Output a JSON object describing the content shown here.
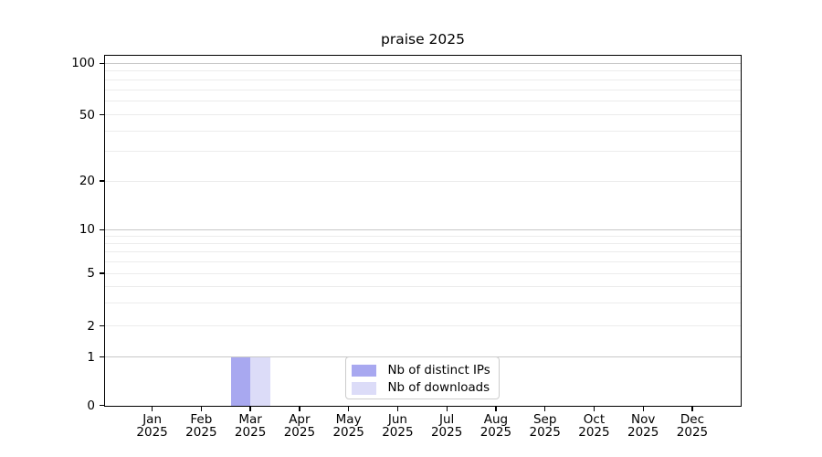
{
  "chart_data": {
    "type": "bar",
    "title": "praise 2025",
    "categories": [
      "Jan",
      "Feb",
      "Mar",
      "Apr",
      "May",
      "Jun",
      "Jul",
      "Aug",
      "Sep",
      "Oct",
      "Nov",
      "Dec"
    ],
    "category_year": "2025",
    "series": [
      {
        "name": "Nb of distinct IPs",
        "color": "#a8a8f0",
        "values": [
          0,
          0,
          1,
          0,
          0,
          0,
          0,
          0,
          0,
          0,
          0,
          0
        ]
      },
      {
        "name": "Nb of downloads",
        "color": "#dcdcf8",
        "values": [
          0,
          0,
          1,
          0,
          0,
          0,
          0,
          0,
          0,
          0,
          0,
          0
        ]
      }
    ],
    "xlabel": "",
    "ylabel": "",
    "y_axis": {
      "scale": "log-with-zero",
      "tick_labels": [
        "100",
        "50",
        "20",
        "10",
        "5",
        "2",
        "1",
        "0"
      ],
      "tick_values": [
        100,
        50,
        20,
        10,
        5,
        2,
        1,
        0
      ],
      "major_gridline_values": [
        1,
        10,
        100
      ],
      "minor_gridline_values": [
        2,
        3,
        4,
        5,
        6,
        7,
        8,
        9,
        20,
        30,
        40,
        50,
        60,
        70,
        80,
        90
      ],
      "ylim": [
        0,
        100
      ]
    },
    "legend": {
      "entries": [
        "Nb of distinct IPs",
        "Nb of downloads"
      ],
      "position": "lower-center-inside"
    },
    "grid": "horizontal-only"
  },
  "colors": {
    "bar_distinct_ips": "#a8a8f0",
    "bar_downloads": "#dcdcf8",
    "major_grid": "#c8c8c8",
    "minor_grid": "#ececec",
    "axis": "#000000",
    "legend_border": "#cccccc",
    "background": "#ffffff"
  }
}
